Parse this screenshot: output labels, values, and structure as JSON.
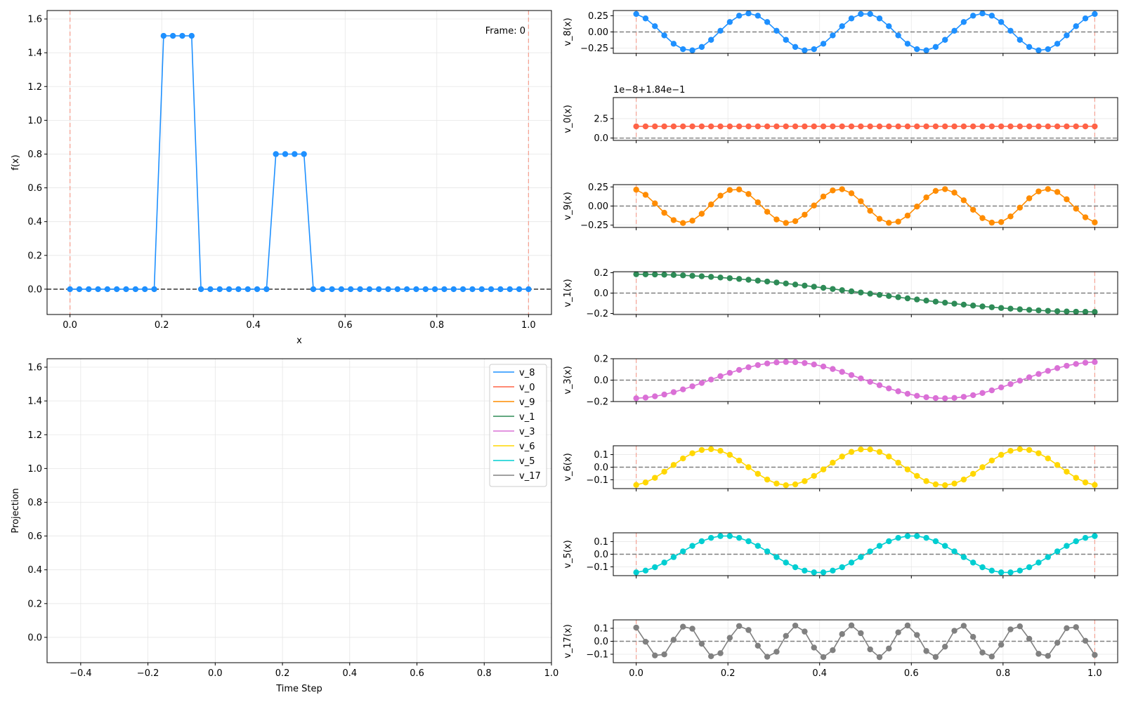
{
  "chart_data": [
    {
      "id": "main",
      "type": "line",
      "xlabel": "x",
      "ylabel": "f(x)",
      "annotation": "Frame: 0",
      "xlim": [
        -0.05,
        1.05
      ],
      "ylim": [
        -0.15,
        1.65
      ],
      "xticks": [
        0.0,
        0.2,
        0.4,
        0.6,
        0.8,
        1.0
      ],
      "xtick_labels": [
        "0.0",
        "0.2",
        "0.4",
        "0.6",
        "0.8",
        "1.0"
      ],
      "yticks": [
        0.0,
        0.2,
        0.4,
        0.6,
        0.8,
        1.0,
        1.2,
        1.4,
        1.6
      ],
      "ytick_labels": [
        "0.0",
        "0.2",
        "0.4",
        "0.6",
        "0.8",
        "1.0",
        "1.2",
        "1.4",
        "1.6"
      ],
      "vlines": [
        0.0,
        1.0
      ],
      "hline": 0.0,
      "grid": true,
      "series": [
        {
          "color": "#1e90ff",
          "x": [
            0.0,
            0.0204,
            0.0408,
            0.0612,
            0.0816,
            0.102,
            0.1224,
            0.1429,
            0.1633,
            0.1837,
            0.2041,
            0.2245,
            0.2449,
            0.2653,
            0.2857,
            0.3061,
            0.3265,
            0.3469,
            0.3673,
            0.3878,
            0.4082,
            0.4286,
            0.449,
            0.4694,
            0.4898,
            0.5102,
            0.5306,
            0.551,
            0.5714,
            0.5918,
            0.6122,
            0.6327,
            0.6531,
            0.6735,
            0.6939,
            0.7143,
            0.7347,
            0.7551,
            0.7755,
            0.7959,
            0.8163,
            0.8367,
            0.8571,
            0.8776,
            0.898,
            0.9184,
            0.9388,
            0.9592,
            0.9796,
            1.0
          ],
          "y": [
            0,
            0,
            0,
            0,
            0,
            0,
            0,
            0,
            0,
            0,
            1.5,
            1.5,
            1.5,
            1.5,
            0,
            0,
            0,
            0,
            0,
            0,
            0,
            0,
            0.8,
            0.8,
            0.8,
            0.8,
            0,
            0,
            0,
            0,
            0,
            0,
            0,
            0,
            0,
            0,
            0,
            0,
            0,
            0,
            0,
            0,
            0,
            0,
            0,
            0,
            0,
            0,
            0,
            0
          ]
        }
      ]
    },
    {
      "id": "projection",
      "type": "line",
      "xlabel": "Time Step",
      "ylabel": "Projection",
      "xlim": [
        -0.5,
        1.0
      ],
      "ylim": [
        -0.15,
        1.65
      ],
      "xticks": [
        -0.4,
        -0.2,
        0.0,
        0.2,
        0.4,
        0.6,
        0.8,
        1.0
      ],
      "xtick_labels": [
        "−0.4",
        "−0.2",
        "0.0",
        "0.2",
        "0.4",
        "0.6",
        "0.8",
        "1.0"
      ],
      "yticks": [
        0.0,
        0.2,
        0.4,
        0.6,
        0.8,
        1.0,
        1.2,
        1.4,
        1.6
      ],
      "ytick_labels": [
        "0.0",
        "0.2",
        "0.4",
        "0.6",
        "0.8",
        "1.0",
        "1.2",
        "1.4",
        "1.6"
      ],
      "grid": true,
      "legend_position": "top-right",
      "series": [
        {
          "name": "v_8",
          "color": "#1e90ff",
          "x": [],
          "y": []
        },
        {
          "name": "v_0",
          "color": "#ff6347",
          "x": [],
          "y": []
        },
        {
          "name": "v_9",
          "color": "#ff8c00",
          "x": [],
          "y": []
        },
        {
          "name": "v_1",
          "color": "#2e8b57",
          "x": [],
          "y": []
        },
        {
          "name": "v_3",
          "color": "#da70d6",
          "x": [],
          "y": []
        },
        {
          "name": "v_6",
          "color": "#ffd700",
          "x": [],
          "y": []
        },
        {
          "name": "v_5",
          "color": "#00ced1",
          "x": [],
          "y": []
        },
        {
          "name": "v_17",
          "color": "#808080",
          "x": [],
          "y": []
        }
      ]
    },
    {
      "id": "v8",
      "type": "line",
      "ylabel": "v_8(x)",
      "color": "#1e90ff",
      "mode": "cos",
      "amplitude": 0.2857,
      "k": 8,
      "ylim": [
        -0.33,
        0.33
      ],
      "yticks": [
        -0.25,
        0.0,
        0.25
      ],
      "ytick_labels": [
        "−0.25",
        "0.00",
        "0.25"
      ]
    },
    {
      "id": "v0",
      "type": "line",
      "ylabel": "v_0(x)",
      "color": "#ff6347",
      "mode": "const",
      "value": 1.5,
      "offset_label": "1e−8+1.84e−1",
      "ylim": [
        -0.3,
        5.2
      ],
      "yticks": [
        0.0,
        2.5
      ],
      "ytick_labels": [
        "0.0",
        "2.5"
      ]
    },
    {
      "id": "v9",
      "type": "line",
      "ylabel": "v_9(x)",
      "color": "#ff8c00",
      "mode": "cos",
      "amplitude": 0.2223,
      "k": 9,
      "ylim": [
        -0.28,
        0.28
      ],
      "yticks": [
        -0.25,
        0.0,
        0.25
      ],
      "ytick_labels": [
        "−0.25",
        "0.00",
        "0.25"
      ]
    },
    {
      "id": "v1",
      "type": "line",
      "ylabel": "v_1(x)",
      "color": "#2e8b57",
      "mode": "cos",
      "amplitude": 0.1849,
      "k": 1,
      "ylim": [
        -0.21,
        0.21
      ],
      "yticks": [
        -0.2,
        0.0,
        0.2
      ],
      "ytick_labels": [
        "−0.2",
        "0.0",
        "0.2"
      ]
    },
    {
      "id": "v3",
      "type": "line",
      "ylabel": "v_3(x)",
      "color": "#da70d6",
      "mode": "cos",
      "amplitude": -0.1699,
      "k": 3,
      "ylim": [
        -0.2,
        0.2
      ],
      "yticks": [
        -0.2,
        0.0,
        0.2
      ],
      "ytick_labels": [
        "−0.2",
        "0.0",
        "0.2"
      ]
    },
    {
      "id": "v6",
      "type": "line",
      "ylabel": "v_6(x)",
      "color": "#ffd700",
      "mode": "cos",
      "amplitude": -0.1436,
      "k": 6,
      "ylim": [
        -0.17,
        0.17
      ],
      "yticks": [
        -0.1,
        0.0,
        0.1
      ],
      "ytick_labels": [
        "−0.1",
        "0.0",
        "0.1"
      ]
    },
    {
      "id": "v5",
      "type": "line",
      "ylabel": "v_5(x)",
      "color": "#00ced1",
      "mode": "cos",
      "amplitude": -0.1459,
      "k": 5,
      "ylim": [
        -0.17,
        0.17
      ],
      "yticks": [
        -0.1,
        0.0,
        0.1
      ],
      "ytick_labels": [
        "−0.1",
        "0.0",
        "0.1"
      ]
    },
    {
      "id": "v17",
      "type": "line",
      "ylabel": "v_17(x)",
      "color": "#808080",
      "mode": "cos",
      "amplitude": 0.1224,
      "k": 17,
      "ylim": [
        -0.165,
        0.165
      ],
      "yticks": [
        -0.1,
        0.0,
        0.1
      ],
      "ytick_labels": [
        "−0.1",
        "0.0",
        "0.1"
      ]
    }
  ],
  "small_xticks": [
    0.0,
    0.2,
    0.4,
    0.6,
    0.8,
    1.0
  ],
  "small_xtick_labels": [
    "0.0",
    "0.2",
    "0.4",
    "0.6",
    "0.8",
    "1.0"
  ],
  "small_xlim": [
    -0.05,
    1.05
  ],
  "small_n_points": 50
}
